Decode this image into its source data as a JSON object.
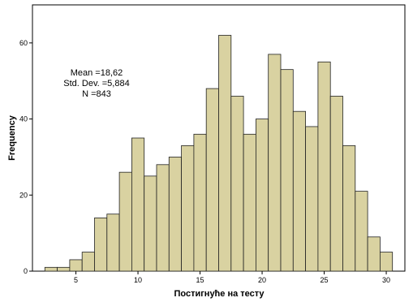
{
  "chart_data": {
    "type": "bar",
    "subtype": "histogram",
    "xlabel": "Постигнуће на тесту",
    "ylabel": "Frequency",
    "bin_width": 1,
    "bin_start": 2.5,
    "bins": [
      {
        "center": 3,
        "count": 1
      },
      {
        "center": 4,
        "count": 1
      },
      {
        "center": 5,
        "count": 3
      },
      {
        "center": 6,
        "count": 5
      },
      {
        "center": 7,
        "count": 14
      },
      {
        "center": 8,
        "count": 15
      },
      {
        "center": 9,
        "count": 26
      },
      {
        "center": 10,
        "count": 35
      },
      {
        "center": 11,
        "count": 25
      },
      {
        "center": 12,
        "count": 28
      },
      {
        "center": 13,
        "count": 30
      },
      {
        "center": 14,
        "count": 33
      },
      {
        "center": 15,
        "count": 36
      },
      {
        "center": 16,
        "count": 48
      },
      {
        "center": 17,
        "count": 62
      },
      {
        "center": 18,
        "count": 46
      },
      {
        "center": 19,
        "count": 36
      },
      {
        "center": 20,
        "count": 40
      },
      {
        "center": 21,
        "count": 57
      },
      {
        "center": 22,
        "count": 53
      },
      {
        "center": 23,
        "count": 42
      },
      {
        "center": 24,
        "count": 38
      },
      {
        "center": 25,
        "count": 55
      },
      {
        "center": 26,
        "count": 46
      },
      {
        "center": 27,
        "count": 33
      },
      {
        "center": 28,
        "count": 21
      },
      {
        "center": 29,
        "count": 9
      },
      {
        "center": 30,
        "count": 5
      }
    ],
    "xlim": [
      1.5,
      31.5
    ],
    "ylim": [
      0,
      70
    ],
    "x_ticks": [
      5,
      10,
      15,
      20,
      25,
      30
    ],
    "y_ticks": [
      0,
      20,
      40,
      60
    ],
    "x_tick_labels": [
      "5",
      "10",
      "15",
      "20",
      "25",
      "30"
    ],
    "y_tick_labels": [
      "0",
      "20",
      "40",
      "60"
    ],
    "stats": {
      "mean": "Mean =18,62",
      "std": "Std. Dev. =5,884",
      "n": "N =843"
    },
    "grid": false,
    "colors": {
      "bar_fill": "#d9d2a1",
      "bar_stroke": "#222222",
      "plot_border": "#000000"
    }
  }
}
